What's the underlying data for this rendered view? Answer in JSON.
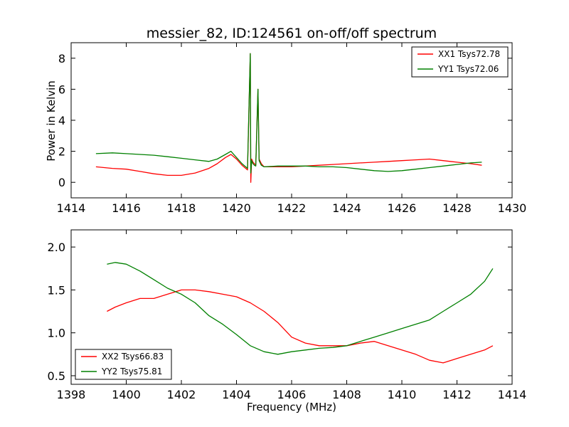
{
  "chart_data": [
    {
      "type": "line",
      "title": "messier_82, ID:124561 on-off/off spectrum",
      "xlabel": "",
      "ylabel": "Power in Kelvin",
      "xlim": [
        1414,
        1430
      ],
      "ylim": [
        -1,
        9
      ],
      "xticks": [
        1414,
        1416,
        1418,
        1420,
        1422,
        1424,
        1426,
        1428,
        1430
      ],
      "yticks": [
        0,
        2,
        4,
        6,
        8
      ],
      "legend_position": "top-right",
      "grid": false,
      "series": [
        {
          "name": "XX1 Tsys72.78",
          "color": "#ff0000",
          "x": [
            1414.9,
            1415.5,
            1416.0,
            1416.5,
            1417.0,
            1417.5,
            1418.0,
            1418.5,
            1419.0,
            1419.3,
            1419.6,
            1419.8,
            1420.0,
            1420.2,
            1420.4,
            1420.5,
            1420.52,
            1420.55,
            1420.6,
            1420.65,
            1420.7,
            1420.78,
            1420.82,
            1420.9,
            1421.0,
            1421.5,
            1422.0,
            1422.5,
            1423.0,
            1423.5,
            1424.0,
            1424.5,
            1425.0,
            1425.5,
            1426.0,
            1426.5,
            1427.0,
            1427.5,
            1428.0,
            1428.5,
            1428.9
          ],
          "y": [
            1.0,
            0.9,
            0.85,
            0.7,
            0.55,
            0.45,
            0.45,
            0.6,
            0.9,
            1.2,
            1.6,
            1.8,
            1.5,
            1.1,
            0.8,
            8.3,
            0.0,
            1.5,
            1.3,
            1.2,
            1.1,
            6.0,
            1.5,
            1.2,
            1.0,
            1.0,
            1.0,
            1.05,
            1.1,
            1.15,
            1.2,
            1.25,
            1.3,
            1.35,
            1.4,
            1.45,
            1.5,
            1.4,
            1.3,
            1.2,
            1.1
          ]
        },
        {
          "name": "YY1 Tsys72.06",
          "color": "#008000",
          "x": [
            1414.9,
            1415.5,
            1416.0,
            1416.5,
            1417.0,
            1417.5,
            1418.0,
            1418.5,
            1419.0,
            1419.3,
            1419.6,
            1419.8,
            1420.0,
            1420.2,
            1420.4,
            1420.5,
            1420.52,
            1420.55,
            1420.6,
            1420.65,
            1420.7,
            1420.78,
            1420.82,
            1420.9,
            1421.0,
            1421.5,
            1422.0,
            1422.5,
            1423.0,
            1423.5,
            1424.0,
            1424.5,
            1425.0,
            1425.5,
            1426.0,
            1426.5,
            1427.0,
            1427.5,
            1428.0,
            1428.5,
            1428.9
          ],
          "y": [
            1.85,
            1.9,
            1.85,
            1.8,
            1.75,
            1.65,
            1.55,
            1.45,
            1.35,
            1.5,
            1.8,
            2.0,
            1.6,
            1.2,
            0.9,
            8.3,
            0.6,
            1.4,
            1.2,
            1.1,
            1.05,
            6.0,
            1.4,
            1.1,
            1.0,
            1.05,
            1.05,
            1.05,
            1.0,
            1.0,
            0.95,
            0.85,
            0.75,
            0.7,
            0.75,
            0.85,
            0.95,
            1.05,
            1.15,
            1.25,
            1.3
          ]
        }
      ]
    },
    {
      "type": "line",
      "title": "",
      "xlabel": "Frequency (MHz)",
      "ylabel": "",
      "xlim": [
        1398,
        1414
      ],
      "ylim": [
        0.4,
        2.2
      ],
      "xticks": [
        1398,
        1400,
        1402,
        1404,
        1406,
        1408,
        1410,
        1412,
        1414
      ],
      "yticks": [
        0.5,
        1.0,
        1.5,
        2.0
      ],
      "legend_position": "bottom-left",
      "grid": false,
      "series": [
        {
          "name": "XX2 Tsys66.83",
          "color": "#ff0000",
          "x": [
            1399.3,
            1399.6,
            1400.0,
            1400.5,
            1401.0,
            1401.5,
            1402.0,
            1402.5,
            1403.0,
            1403.5,
            1404.0,
            1404.5,
            1405.0,
            1405.5,
            1406.0,
            1406.5,
            1407.0,
            1407.5,
            1408.0,
            1408.5,
            1409.0,
            1409.5,
            1410.0,
            1410.5,
            1411.0,
            1411.5,
            1412.0,
            1412.5,
            1413.0,
            1413.3
          ],
          "y": [
            1.25,
            1.3,
            1.35,
            1.4,
            1.4,
            1.45,
            1.5,
            1.5,
            1.48,
            1.45,
            1.42,
            1.35,
            1.25,
            1.12,
            0.95,
            0.88,
            0.85,
            0.85,
            0.85,
            0.88,
            0.9,
            0.85,
            0.8,
            0.75,
            0.68,
            0.65,
            0.7,
            0.75,
            0.8,
            0.85
          ]
        },
        {
          "name": "YY2 Tsys75.81",
          "color": "#008000",
          "x": [
            1399.3,
            1399.6,
            1400.0,
            1400.5,
            1401.0,
            1401.5,
            1402.0,
            1402.5,
            1403.0,
            1403.5,
            1404.0,
            1404.5,
            1405.0,
            1405.5,
            1406.0,
            1406.5,
            1407.0,
            1407.5,
            1408.0,
            1408.5,
            1409.0,
            1409.5,
            1410.0,
            1410.5,
            1411.0,
            1411.5,
            1412.0,
            1412.5,
            1413.0,
            1413.3
          ],
          "y": [
            1.8,
            1.82,
            1.8,
            1.72,
            1.62,
            1.52,
            1.45,
            1.35,
            1.2,
            1.1,
            0.98,
            0.85,
            0.78,
            0.75,
            0.78,
            0.8,
            0.82,
            0.83,
            0.85,
            0.9,
            0.95,
            1.0,
            1.05,
            1.1,
            1.15,
            1.25,
            1.35,
            1.45,
            1.6,
            1.75
          ]
        }
      ]
    }
  ]
}
